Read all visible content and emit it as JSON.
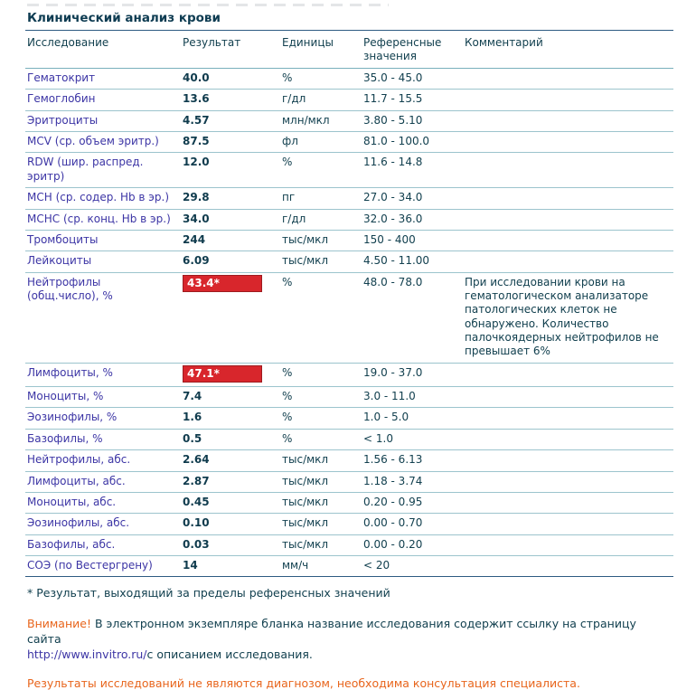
{
  "page": {
    "title": "Клинический анализ крови",
    "footnote": "* Результат, выходящий за пределы референсных значений",
    "notice": {
      "label": "Внимание!",
      "text": " В электронном экземпляре бланка название исследования содержит ссылку на страницу сайта",
      "url": "http://www.invitro.ru/",
      "url_suffix": "с описанием исследования."
    },
    "disclaimer": "Результаты исследований не являются диагнозом, необходима консультация специалиста.",
    "colors": {
      "abnormal_result_bg": "#d8262c",
      "abnormal_result_text": "#ffffff",
      "warning_orange": "#e8651c",
      "test_name_blue": "#3c35a5",
      "text_dark_teal": "#12404f",
      "row_line_teal": "#9cc4cd",
      "section_line_navy": "#2e5b82"
    }
  },
  "table": {
    "headers": {
      "name": "Исследование",
      "result": "Результат",
      "units": "Единицы",
      "ref": "Референсные значения",
      "comment": "Комментарий"
    },
    "rows": [
      {
        "name": "Гематокрит",
        "result": "40.0",
        "units": "%",
        "ref": "35.0 - 45.0",
        "comment": "",
        "flagged": false
      },
      {
        "name": "Гемоглобин",
        "result": "13.6",
        "units": "г/дл",
        "ref": "11.7 - 15.5",
        "comment": "",
        "flagged": false
      },
      {
        "name": "Эритроциты",
        "result": "4.57",
        "units": "млн/мкл",
        "ref": "3.80 - 5.10",
        "comment": "",
        "flagged": false
      },
      {
        "name": "MCV (ср. объем эритр.)",
        "result": "87.5",
        "units": "фл",
        "ref": "81.0 - 100.0",
        "comment": "",
        "flagged": false
      },
      {
        "name": "RDW (шир. распред. эритр)",
        "result": "12.0",
        "units": "%",
        "ref": "11.6 - 14.8",
        "comment": "",
        "flagged": false
      },
      {
        "name": "MCH (ср. содер. Hb в эр.)",
        "result": "29.8",
        "units": "пг",
        "ref": "27.0 - 34.0",
        "comment": "",
        "flagged": false
      },
      {
        "name": "MCHC (ср. конц. Hb в эр.)",
        "result": "34.0",
        "units": "г/дл",
        "ref": "32.0 - 36.0",
        "comment": "",
        "flagged": false
      },
      {
        "name": "Тромбоциты",
        "result": "244",
        "units": "тыс/мкл",
        "ref": "150 - 400",
        "comment": "",
        "flagged": false
      },
      {
        "name": "Лейкоциты",
        "result": "6.09",
        "units": "тыс/мкл",
        "ref": "4.50 - 11.00",
        "comment": "",
        "flagged": false
      },
      {
        "name": "Нейтрофилы (общ.число), %",
        "result": "43.4*",
        "units": "%",
        "ref": "48.0 - 78.0",
        "comment": "При исследовании крови на гематологическом анализаторе патологических клеток не обнаружено. Количество палочкоядерных нейтрофилов не превышает 6%",
        "flagged": true
      },
      {
        "name": "Лимфоциты, %",
        "result": "47.1*",
        "units": "%",
        "ref": "19.0 - 37.0",
        "comment": "",
        "flagged": true
      },
      {
        "name": "Моноциты, %",
        "result": "7.4",
        "units": "%",
        "ref": "3.0 - 11.0",
        "comment": "",
        "flagged": false
      },
      {
        "name": "Эозинофилы, %",
        "result": "1.6",
        "units": "%",
        "ref": "1.0 - 5.0",
        "comment": "",
        "flagged": false
      },
      {
        "name": "Базофилы, %",
        "result": "0.5",
        "units": "%",
        "ref": "< 1.0",
        "comment": "",
        "flagged": false
      },
      {
        "name": "Нейтрофилы, абс.",
        "result": "2.64",
        "units": "тыс/мкл",
        "ref": "1.56 - 6.13",
        "comment": "",
        "flagged": false
      },
      {
        "name": "Лимфоциты, абс.",
        "result": "2.87",
        "units": "тыс/мкл",
        "ref": "1.18 - 3.74",
        "comment": "",
        "flagged": false
      },
      {
        "name": "Моноциты, абс.",
        "result": "0.45",
        "units": "тыс/мкл",
        "ref": "0.20 - 0.95",
        "comment": "",
        "flagged": false
      },
      {
        "name": "Эозинофилы, абс.",
        "result": "0.10",
        "units": "тыс/мкл",
        "ref": "0.00 - 0.70",
        "comment": "",
        "flagged": false
      },
      {
        "name": "Базофилы, абс.",
        "result": "0.03",
        "units": "тыс/мкл",
        "ref": "0.00 - 0.20",
        "comment": "",
        "flagged": false
      },
      {
        "name": "СОЭ (по Вестергрену)",
        "result": "14",
        "units": "мм/ч",
        "ref": "< 20",
        "comment": "",
        "flagged": false
      }
    ]
  }
}
